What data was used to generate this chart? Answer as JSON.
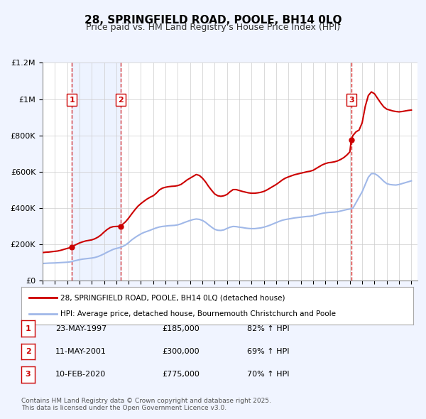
{
  "title": "28, SPRINGFIELD ROAD, POOLE, BH14 0LQ",
  "subtitle": "Price paid vs. HM Land Registry's House Price Index (HPI)",
  "background_color": "#f0f4ff",
  "plot_background_color": "#ffffff",
  "hpi_color": "#a0b8e8",
  "price_color": "#cc0000",
  "sale_marker_color": "#cc0000",
  "vline_color": "#cc0000",
  "vfill_color": "#dce8ff",
  "ylim": [
    0,
    1200000
  ],
  "yticks": [
    0,
    200000,
    400000,
    600000,
    800000,
    1000000,
    1200000
  ],
  "ytick_labels": [
    "£0",
    "£200K",
    "£400K",
    "£600K",
    "£800K",
    "£1M",
    "£1.2M"
  ],
  "xlim_start": 1995.0,
  "xlim_end": 2025.5,
  "legend_label_price": "28, SPRINGFIELD ROAD, POOLE, BH14 0LQ (detached house)",
  "legend_label_hpi": "HPI: Average price, detached house, Bournemouth Christchurch and Poole",
  "sales": [
    {
      "num": 1,
      "date_label": "23-MAY-1997",
      "year": 1997.38,
      "price": 185000,
      "pct": "82%",
      "arrow": "↑"
    },
    {
      "num": 2,
      "date_label": "11-MAY-2001",
      "year": 2001.36,
      "price": 300000,
      "pct": "69%",
      "arrow": "↑"
    },
    {
      "num": 3,
      "date_label": "10-FEB-2020",
      "year": 2020.11,
      "price": 775000,
      "pct": "70%",
      "arrow": "↑"
    }
  ],
  "hpi_years": [
    1995.0,
    1995.25,
    1995.5,
    1995.75,
    1996.0,
    1996.25,
    1996.5,
    1996.75,
    1997.0,
    1997.25,
    1997.5,
    1997.75,
    1998.0,
    1998.25,
    1998.5,
    1998.75,
    1999.0,
    1999.25,
    1999.5,
    1999.75,
    2000.0,
    2000.25,
    2000.5,
    2000.75,
    2001.0,
    2001.25,
    2001.5,
    2001.75,
    2002.0,
    2002.25,
    2002.5,
    2002.75,
    2003.0,
    2003.25,
    2003.5,
    2003.75,
    2004.0,
    2004.25,
    2004.5,
    2004.75,
    2005.0,
    2005.25,
    2005.5,
    2005.75,
    2006.0,
    2006.25,
    2006.5,
    2006.75,
    2007.0,
    2007.25,
    2007.5,
    2007.75,
    2008.0,
    2008.25,
    2008.5,
    2008.75,
    2009.0,
    2009.25,
    2009.5,
    2009.75,
    2010.0,
    2010.25,
    2010.5,
    2010.75,
    2011.0,
    2011.25,
    2011.5,
    2011.75,
    2012.0,
    2012.25,
    2012.5,
    2012.75,
    2013.0,
    2013.25,
    2013.5,
    2013.75,
    2014.0,
    2014.25,
    2014.5,
    2014.75,
    2015.0,
    2015.25,
    2015.5,
    2015.75,
    2016.0,
    2016.25,
    2016.5,
    2016.75,
    2017.0,
    2017.25,
    2017.5,
    2017.75,
    2018.0,
    2018.25,
    2018.5,
    2018.75,
    2019.0,
    2019.25,
    2019.5,
    2019.75,
    2020.0,
    2020.25,
    2020.5,
    2020.75,
    2021.0,
    2021.25,
    2021.5,
    2021.75,
    2022.0,
    2022.25,
    2022.5,
    2022.75,
    2023.0,
    2023.25,
    2023.5,
    2023.75,
    2024.0,
    2024.25,
    2024.5,
    2024.75,
    2025.0
  ],
  "hpi_values": [
    95000,
    96000,
    97000,
    97500,
    98000,
    99000,
    100000,
    101000,
    102000,
    104000,
    108000,
    112000,
    116000,
    119000,
    121000,
    123000,
    125000,
    128000,
    133000,
    140000,
    148000,
    157000,
    165000,
    173000,
    178000,
    182000,
    188000,
    197000,
    210000,
    225000,
    237000,
    248000,
    258000,
    266000,
    272000,
    278000,
    285000,
    291000,
    296000,
    299000,
    301000,
    303000,
    304000,
    305000,
    308000,
    313000,
    320000,
    326000,
    332000,
    337000,
    340000,
    338000,
    332000,
    322000,
    308000,
    295000,
    283000,
    278000,
    277000,
    280000,
    288000,
    295000,
    299000,
    298000,
    295000,
    293000,
    290000,
    288000,
    287000,
    287000,
    289000,
    291000,
    295000,
    300000,
    306000,
    313000,
    320000,
    327000,
    333000,
    337000,
    340000,
    343000,
    346000,
    348000,
    350000,
    352000,
    354000,
    355000,
    358000,
    362000,
    367000,
    371000,
    374000,
    376000,
    377000,
    378000,
    380000,
    384000,
    388000,
    392000,
    395000,
    400000,
    430000,
    460000,
    490000,
    530000,
    570000,
    590000,
    590000,
    580000,
    565000,
    548000,
    535000,
    530000,
    528000,
    527000,
    530000,
    535000,
    540000,
    545000,
    550000
  ],
  "price_years": [
    1995.0,
    1995.25,
    1995.5,
    1995.75,
    1996.0,
    1996.25,
    1996.5,
    1996.75,
    1997.0,
    1997.25,
    1997.38,
    1997.5,
    1997.75,
    1998.0,
    1998.25,
    1998.5,
    1998.75,
    1999.0,
    1999.25,
    1999.5,
    1999.75,
    2000.0,
    2000.25,
    2000.5,
    2000.75,
    2001.0,
    2001.25,
    2001.36,
    2001.5,
    2001.75,
    2002.0,
    2002.25,
    2002.5,
    2002.75,
    2003.0,
    2003.25,
    2003.5,
    2003.75,
    2004.0,
    2004.25,
    2004.5,
    2004.75,
    2005.0,
    2005.25,
    2005.5,
    2005.75,
    2006.0,
    2006.25,
    2006.5,
    2006.75,
    2007.0,
    2007.25,
    2007.5,
    2007.75,
    2008.0,
    2008.25,
    2008.5,
    2008.75,
    2009.0,
    2009.25,
    2009.5,
    2009.75,
    2010.0,
    2010.25,
    2010.5,
    2010.75,
    2011.0,
    2011.25,
    2011.5,
    2011.75,
    2012.0,
    2012.25,
    2012.5,
    2012.75,
    2013.0,
    2013.25,
    2013.5,
    2013.75,
    2014.0,
    2014.25,
    2014.5,
    2014.75,
    2015.0,
    2015.25,
    2015.5,
    2015.75,
    2016.0,
    2016.25,
    2016.5,
    2016.75,
    2017.0,
    2017.25,
    2017.5,
    2017.75,
    2018.0,
    2018.25,
    2018.5,
    2018.75,
    2019.0,
    2019.25,
    2019.5,
    2019.75,
    2020.0,
    2020.11,
    2020.25,
    2020.5,
    2020.75,
    2021.0,
    2021.25,
    2021.5,
    2021.75,
    2022.0,
    2022.25,
    2022.5,
    2022.75,
    2023.0,
    2023.25,
    2023.5,
    2023.75,
    2024.0,
    2024.25,
    2024.5,
    2024.75,
    2025.0
  ],
  "price_values": [
    155000,
    157000,
    158000,
    160000,
    162000,
    164000,
    168000,
    173000,
    178000,
    182000,
    185000,
    192000,
    200000,
    208000,
    214000,
    219000,
    222000,
    225000,
    231000,
    240000,
    252000,
    268000,
    282000,
    293000,
    298000,
    299000,
    300000,
    300000,
    310000,
    325000,
    345000,
    368000,
    390000,
    410000,
    425000,
    438000,
    450000,
    460000,
    468000,
    482000,
    500000,
    510000,
    515000,
    518000,
    520000,
    521000,
    524000,
    530000,
    542000,
    555000,
    565000,
    575000,
    585000,
    580000,
    565000,
    545000,
    520000,
    498000,
    478000,
    468000,
    465000,
    468000,
    475000,
    490000,
    502000,
    502000,
    497000,
    492000,
    488000,
    484000,
    482000,
    482000,
    484000,
    487000,
    492000,
    500000,
    510000,
    520000,
    530000,
    542000,
    555000,
    565000,
    572000,
    578000,
    584000,
    588000,
    592000,
    596000,
    600000,
    603000,
    608000,
    618000,
    628000,
    638000,
    645000,
    650000,
    652000,
    655000,
    660000,
    668000,
    678000,
    692000,
    710000,
    775000,
    800000,
    820000,
    830000,
    870000,
    960000,
    1020000,
    1040000,
    1030000,
    1005000,
    980000,
    958000,
    945000,
    940000,
    935000,
    932000,
    930000,
    932000,
    935000,
    938000,
    940000
  ],
  "footer": "Contains HM Land Registry data © Crown copyright and database right 2025.\nThis data is licensed under the Open Government Licence v3.0."
}
